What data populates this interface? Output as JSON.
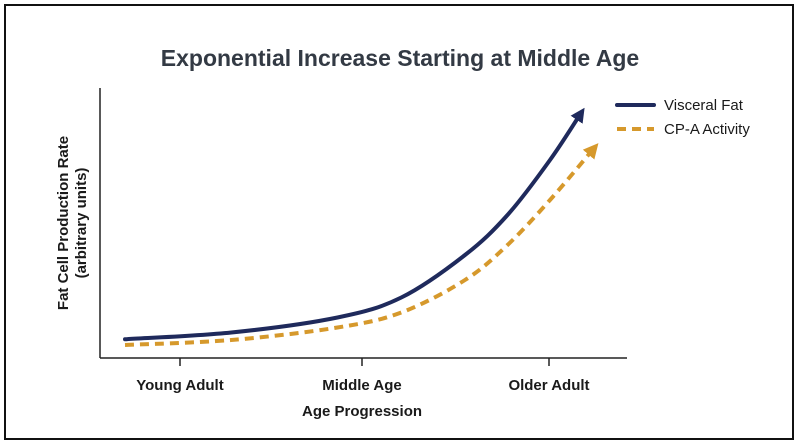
{
  "chart_data": {
    "type": "line",
    "title": "Exponential Increase Starting at Middle Age",
    "xlabel": "Age Progression",
    "ylabel": [
      "Fat Cell Production Rate",
      "(arbitrary units)"
    ],
    "categories": [
      "Young Adult",
      "Middle Age",
      "Older Adult"
    ],
    "ylim": [
      0,
      1
    ],
    "grid": false,
    "legend_position": "top-right",
    "series": [
      {
        "name": "Visceral Fat",
        "color": "#1f2a5c",
        "style": "solid",
        "end": "arrow",
        "x": [
          0,
          0.25,
          0.5,
          0.65,
          0.8,
          0.9,
          1.0,
          1.07
        ],
        "y": [
          0.003,
          0.03,
          0.09,
          0.17,
          0.34,
          0.5,
          0.72,
          0.9
        ]
      },
      {
        "name": "CP-A Activity",
        "color": "#d6992c",
        "style": "dashed",
        "end": "arrow",
        "x": [
          0,
          0.25,
          0.5,
          0.65,
          0.8,
          0.9,
          1.0,
          1.1
        ],
        "y": [
          -0.02,
          0.0,
          0.05,
          0.11,
          0.24,
          0.38,
          0.56,
          0.76
        ]
      }
    ]
  }
}
